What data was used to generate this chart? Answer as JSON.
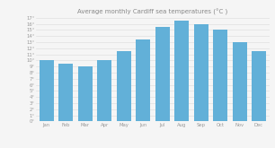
{
  "title": "Average monthly Cardiff sea temperatures (°C )",
  "months": [
    "Jan",
    "Feb",
    "Mar",
    "Apr",
    "May",
    "Jun",
    "Jul",
    "Aug",
    "Sep",
    "Oct",
    "Nov",
    "Dec"
  ],
  "values": [
    10,
    9.5,
    9,
    10,
    11.5,
    13.5,
    15.5,
    16.5,
    16,
    15,
    13,
    11.5
  ],
  "bar_color": "#62B0D8",
  "ylim": [
    0,
    17
  ],
  "yticks": [
    0,
    1,
    2,
    3,
    4,
    5,
    6,
    7,
    8,
    9,
    10,
    11,
    12,
    13,
    14,
    15,
    16,
    17
  ],
  "background_color": "#f5f5f5",
  "grid_color": "#e0e0e0",
  "title_fontsize": 5.0,
  "tick_fontsize": 3.8,
  "label_color": "#999999",
  "title_color": "#888888"
}
